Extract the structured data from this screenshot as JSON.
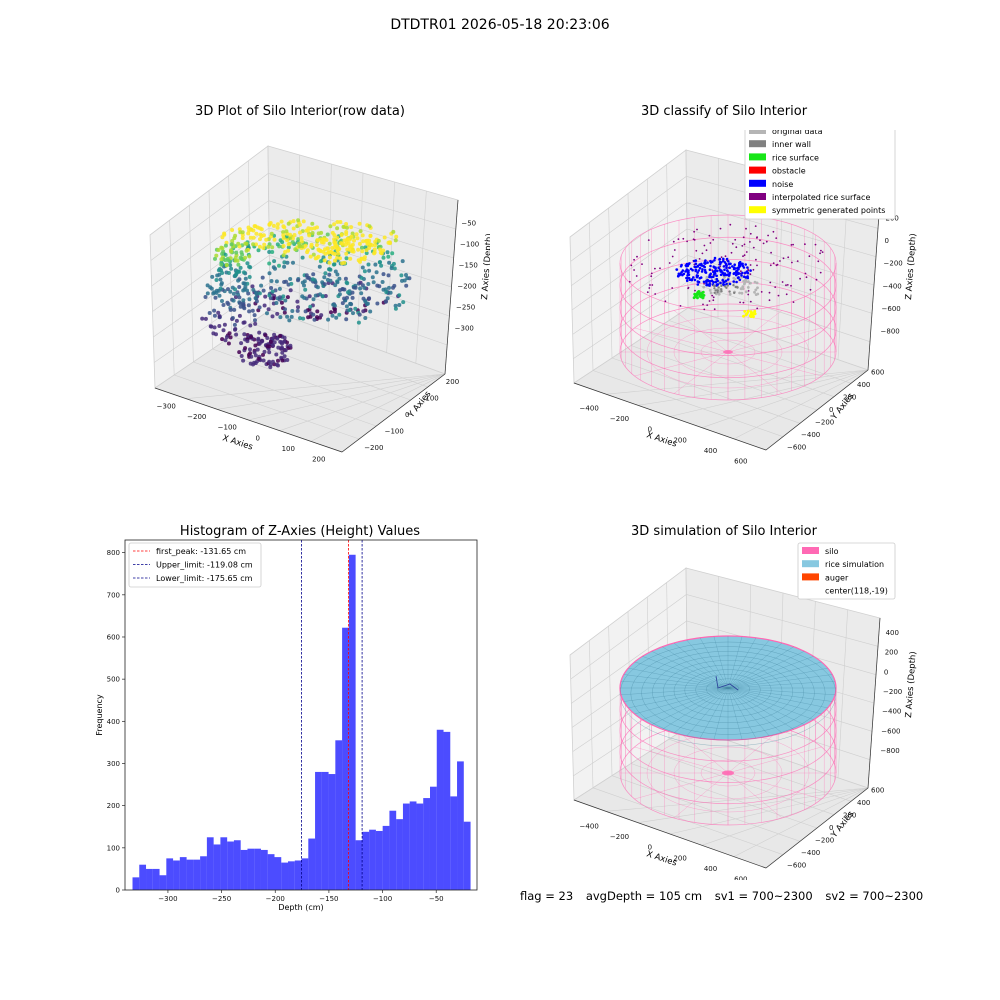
{
  "header": {
    "title": "DTDTR01 2026-05-18 20:23:06"
  },
  "colors": {
    "original": "#b5b5b5",
    "wall": "#808080",
    "rice": "#17e617",
    "obstacle": "#ff0000",
    "noise": "#0000ff",
    "interp": "#800080",
    "symmetric": "#ffff00",
    "silo": "#ff69b4",
    "ricesim": "#87c8e0",
    "auger": "#ff4500",
    "hist": "#0000ff",
    "peak": "#ff0000",
    "limit": "#00008b"
  },
  "plots": {
    "raw": {
      "title": "3D Plot of Silo Interior(row data)",
      "x_label": "X Axies",
      "y_label": "Y Axies",
      "z_label": "Z Axies (Depth)",
      "x_ticks": [
        "−300",
        "−200",
        "−100",
        "0",
        "100",
        "200"
      ],
      "y_ticks": [
        "200",
        "100",
        "0",
        "−100",
        "−200"
      ],
      "z_ticks": [
        "−50",
        "−100",
        "−150",
        "−200",
        "−250",
        "−300"
      ]
    },
    "classify": {
      "title": "3D classify of Silo Interior",
      "x_label": "X Axies",
      "y_label": "Y Axies",
      "z_label": "Z Axies (Depth)",
      "x_ticks": [
        "−400",
        "−200",
        "0",
        "200",
        "400",
        "600"
      ],
      "y_ticks": [
        "600",
        "400",
        "200",
        "0",
        "−200",
        "−400",
        "−600"
      ],
      "z_ticks": [
        "200",
        "0",
        "−200",
        "−400",
        "−600",
        "−800"
      ],
      "legend": [
        "original data",
        "inner wall",
        "rice surface",
        "obstacle",
        "noise",
        "interpolated rice surface",
        "symmetric generated points"
      ]
    },
    "histogram": {
      "title": "Histogram of Z-Axies (Height) Values",
      "x_label": "Depth (cm)",
      "y_label": "Frequency",
      "x_ticks": [
        "−300",
        "−250",
        "−200",
        "−150",
        "−100",
        "−50"
      ],
      "y_ticks": [
        "0",
        "100",
        "200",
        "300",
        "400",
        "500",
        "600",
        "700",
        "800"
      ],
      "legend": [
        "first_peak: -131.65 cm",
        "Upper_limit: -119.08 cm",
        "Lower_limit: -175.65 cm"
      ]
    },
    "simulation": {
      "title": "3D simulation of Silo Interior",
      "x_label": "X Axies",
      "y_label": "Y Axies",
      "z_label": "Z Axies (Depth)",
      "x_ticks": [
        "−400",
        "−200",
        "0",
        "200",
        "400",
        "600"
      ],
      "y_ticks": [
        "600",
        "400",
        "200",
        "0",
        "−200",
        "−400",
        "−600"
      ],
      "z_ticks": [
        "400",
        "200",
        "0",
        "−200",
        "−400",
        "−600",
        "−800"
      ],
      "legend": [
        "silo",
        "rice simulation",
        "auger",
        "center(118,-19)"
      ]
    }
  },
  "footer": {
    "flag": "flag = 23",
    "avg_depth": "avgDepth = 105 cm",
    "sv1": "sv1 = 700~2300",
    "sv2": "sv2 = 700~2300"
  },
  "chart_data": [
    {
      "type": "scatter",
      "title": "3D Plot of Silo Interior(row data)",
      "xlabel": "X Axies",
      "ylabel": "Y Axies",
      "zlabel": "Z Axies (Depth)",
      "xlim": [
        -300,
        200
      ],
      "ylim": [
        -200,
        200
      ],
      "zlim": [
        -320,
        -40
      ],
      "colormap": "viridis (colored by depth)",
      "series": []
    },
    {
      "type": "scatter",
      "title": "3D classify of Silo Interior",
      "xlabel": "X Axies",
      "ylabel": "Y Axies",
      "zlabel": "Z Axies (Depth)",
      "xlim": [
        -500,
        650
      ],
      "ylim": [
        -650,
        650
      ],
      "zlim": [
        -900,
        300
      ],
      "legend_position": "top-right",
      "series": [
        {
          "name": "original data"
        },
        {
          "name": "inner wall"
        },
        {
          "name": "rice surface"
        },
        {
          "name": "obstacle"
        },
        {
          "name": "noise"
        },
        {
          "name": "interpolated rice surface"
        },
        {
          "name": "symmetric generated points"
        }
      ]
    },
    {
      "type": "bar",
      "title": "Histogram of Z-Axies (Height) Values",
      "xlabel": "Depth (cm)",
      "ylabel": "Frequency",
      "xlim": [
        -340,
        -12
      ],
      "ylim": [
        0,
        830
      ],
      "bin_start": -333,
      "bin_width": 6.3,
      "values": [
        30,
        60,
        50,
        50,
        35,
        75,
        70,
        78,
        72,
        72,
        80,
        125,
        108,
        125,
        115,
        118,
        95,
        98,
        98,
        95,
        85,
        78,
        65,
        68,
        70,
        75,
        122,
        280,
        280,
        275,
        355,
        622,
        795,
        118,
        138,
        143,
        140,
        152,
        188,
        168,
        205,
        210,
        205,
        218,
        245,
        380,
        375,
        222,
        305,
        162
      ],
      "vlines": [
        {
          "name": "first_peak: -131.65 cm",
          "x": -131.65
        },
        {
          "name": "Upper_limit: -119.08 cm",
          "x": -119.08
        },
        {
          "name": "Lower_limit: -175.65 cm",
          "x": -175.65
        }
      ],
      "legend_position": "top-left",
      "grid": false
    },
    {
      "type": "surface",
      "title": "3D simulation of Silo Interior",
      "xlabel": "X Axies",
      "ylabel": "Y Axies",
      "zlabel": "Z Axies (Depth)",
      "xlim": [
        -500,
        650
      ],
      "ylim": [
        -650,
        650
      ],
      "zlim": [
        -900,
        450
      ],
      "center": [
        118,
        -19
      ],
      "legend_position": "top-right",
      "series": [
        {
          "name": "silo"
        },
        {
          "name": "rice simulation"
        },
        {
          "name": "auger"
        },
        {
          "name": "center(118,-19)"
        }
      ]
    }
  ]
}
